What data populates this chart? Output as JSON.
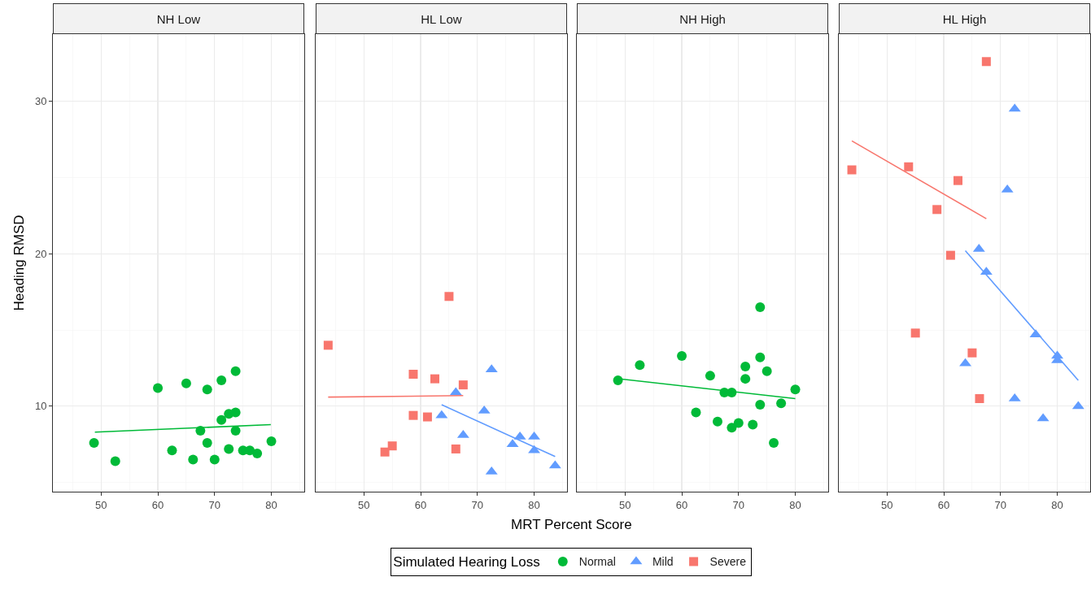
{
  "chart_data": [
    {
      "type": "scatter",
      "title": "NH Low",
      "ylabel": "Heading RMSD",
      "legend_title": "Simulated Hearing Loss",
      "legend": "bottom",
      "grid": true,
      "xlim": [
        41.5,
        85.8
      ],
      "ylim": [
        4.4,
        34.4
      ],
      "xticks": [
        {
          "value": 45,
          "label": null
        },
        50,
        {
          "value": 55,
          "label": null
        },
        60,
        {
          "value": 65,
          "label": null
        },
        70,
        {
          "value": 75,
          "label": null
        },
        80,
        {
          "value": 85,
          "label": null
        }
      ],
      "yticks": [
        {
          "value": 5,
          "label": null
        },
        10,
        {
          "value": 15,
          "label": null
        },
        20,
        {
          "value": 25,
          "label": null
        },
        30
      ],
      "series": [
        {
          "name": "Normal",
          "color": "#00ba38",
          "marker": "circle",
          "x": [
            48.75,
            52.5,
            60.0,
            62.5,
            65.0,
            66.2,
            67.5,
            68.7,
            68.7,
            70.0,
            71.2,
            71.2,
            72.5,
            72.5,
            73.7,
            73.7,
            73.7,
            75.0,
            76.2,
            77.5,
            80.0
          ],
          "values": [
            7.6,
            6.4,
            11.2,
            7.1,
            11.5,
            6.5,
            8.4,
            11.1,
            7.6,
            6.5,
            11.7,
            9.1,
            9.5,
            7.2,
            12.3,
            9.6,
            8.4,
            7.1,
            7.1,
            6.9,
            7.7
          ]
        },
        {
          "type": "line",
          "color": "#00ba38",
          "x": [
            48.9,
            79.9
          ],
          "values": [
            8.3,
            8.8
          ]
        }
      ]
    },
    {
      "type": "scatter",
      "title": "HL Low",
      "grid": true,
      "tick_labels": "x",
      "legend": "bottom",
      "annotations": [
        "MRT Percent Score"
      ],
      "xlim": [
        41.5,
        85.8
      ],
      "ylim": [
        4.4,
        34.4
      ],
      "xticks": [
        {
          "value": 45,
          "label": null
        },
        50,
        {
          "value": 55,
          "label": null
        },
        60,
        {
          "value": 65,
          "label": null
        },
        70,
        {
          "value": 75,
          "label": null
        },
        80,
        {
          "value": 85,
          "label": null
        }
      ],
      "yticks": [
        {
          "value": 5,
          "label": null
        },
        10,
        {
          "value": 15,
          "label": null
        },
        20,
        {
          "value": 25,
          "label": null
        },
        30
      ],
      "series": [
        {
          "name": "Mild",
          "color": "#619cff",
          "marker": "triangle",
          "x": [
            66.2,
            72.5,
            63.7,
            71.2,
            67.5,
            77.5,
            80.0,
            76.2,
            80.0,
            72.5,
            83.7
          ],
          "values": [
            10.9,
            12.4,
            9.4,
            9.7,
            8.1,
            8.0,
            8.0,
            7.5,
            7.1,
            5.7,
            6.1
          ]
        },
        {
          "name": "Severe",
          "color": "#f8766d",
          "marker": "square",
          "x": [
            43.7,
            65.0,
            58.7,
            62.5,
            67.5,
            58.7,
            61.2,
            55.0,
            53.7,
            66.2
          ],
          "values": [
            14.0,
            17.2,
            12.1,
            11.8,
            11.4,
            9.4,
            9.3,
            7.4,
            7.0,
            7.2
          ]
        },
        {
          "type": "line",
          "color": "#619cff",
          "x": [
            63.7,
            83.7
          ],
          "values": [
            10.1,
            6.7
          ]
        },
        {
          "type": "line",
          "color": "#f8766d",
          "x": [
            43.7,
            67.5
          ],
          "values": [
            10.6,
            10.7
          ]
        }
      ]
    },
    {
      "type": "scatter",
      "title": "NH High",
      "grid": true,
      "tick_labels": "x",
      "xlim": [
        41.5,
        85.8
      ],
      "ylim": [
        4.4,
        34.4
      ],
      "xticks": [
        {
          "value": 45,
          "label": null
        },
        50,
        {
          "value": 55,
          "label": null
        },
        60,
        {
          "value": 65,
          "label": null
        },
        70,
        {
          "value": 75,
          "label": null
        },
        80,
        {
          "value": 85,
          "label": null
        }
      ],
      "yticks": [
        {
          "value": 5,
          "label": null
        },
        10,
        {
          "value": 15,
          "label": null
        },
        20,
        {
          "value": 25,
          "label": null
        },
        30
      ],
      "series": [
        {
          "color": "#00ba38",
          "marker": "circle",
          "x": [
            48.75,
            52.6,
            60.0,
            65.0,
            62.5,
            66.3,
            67.5,
            68.8,
            68.8,
            70.0,
            71.2,
            71.2,
            72.5,
            73.8,
            73.8,
            73.8,
            75.0,
            76.2,
            77.5,
            80.0
          ],
          "values": [
            11.7,
            12.7,
            13.3,
            12.0,
            9.6,
            9.0,
            10.9,
            10.9,
            8.6,
            8.9,
            12.6,
            11.8,
            8.8,
            16.5,
            13.2,
            10.1,
            12.3,
            7.6,
            10.2,
            11.1
          ]
        },
        {
          "type": "line",
          "color": "#00ba38",
          "x": [
            49.0,
            80.0
          ],
          "values": [
            11.8,
            10.5
          ]
        }
      ]
    },
    {
      "type": "scatter",
      "title": "HL High",
      "grid": true,
      "tick_labels": "x",
      "xlim": [
        41.5,
        85.8
      ],
      "ylim": [
        4.4,
        34.4
      ],
      "xticks": [
        {
          "value": 45,
          "label": null
        },
        50,
        {
          "value": 55,
          "label": null
        },
        60,
        {
          "value": 65,
          "label": null
        },
        70,
        {
          "value": 75,
          "label": null
        },
        80,
        {
          "value": 85,
          "label": null
        }
      ],
      "yticks": [
        {
          "value": 5,
          "label": null
        },
        10,
        {
          "value": 15,
          "label": null
        },
        20,
        {
          "value": 25,
          "label": null
        },
        30
      ],
      "series": [
        {
          "color": "#619cff",
          "marker": "triangle",
          "x": [
            72.5,
            71.2,
            66.2,
            67.5,
            76.2,
            80.0,
            80.0,
            63.8,
            72.5,
            83.7,
            77.5
          ],
          "values": [
            29.5,
            24.2,
            20.3,
            18.8,
            14.7,
            13.3,
            13.0,
            12.8,
            10.5,
            10.0,
            9.2
          ]
        },
        {
          "color": "#f8766d",
          "marker": "square",
          "x": [
            67.5,
            43.8,
            53.8,
            62.5,
            58.8,
            61.2,
            55.0,
            65.0,
            66.3
          ],
          "values": [
            32.6,
            25.5,
            25.7,
            24.8,
            22.9,
            19.9,
            14.8,
            13.5,
            10.5
          ]
        },
        {
          "type": "line",
          "color": "#619cff",
          "x": [
            63.8,
            83.7
          ],
          "values": [
            20.2,
            11.7
          ]
        },
        {
          "type": "line",
          "color": "#f8766d",
          "x": [
            43.8,
            67.5
          ],
          "values": [
            27.4,
            22.3
          ]
        }
      ]
    }
  ]
}
